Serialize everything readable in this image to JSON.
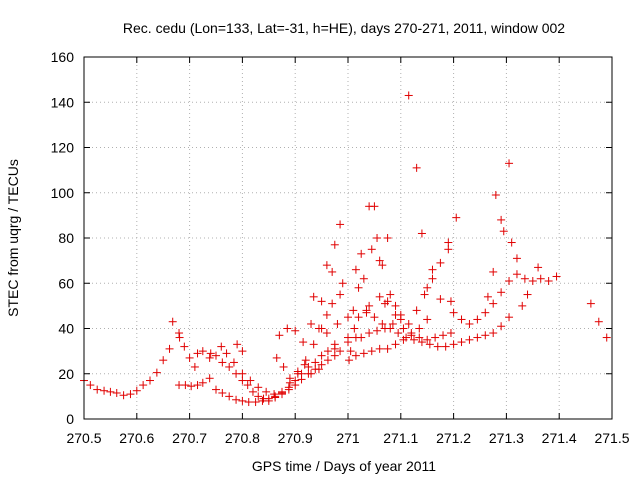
{
  "chart_data": {
    "type": "scatter",
    "title": "Rec. cedu (Lon=133, Lat=-31, h=HE), days 270-271, 2011, window 002",
    "xlabel": "GPS time / Days of year 2011",
    "ylabel": "STEC from uqrg / TECUs",
    "xlim": [
      270.5,
      271.5
    ],
    "ylim": [
      0,
      160
    ],
    "x_ticks": [
      "270.5",
      "270.6",
      "270.7",
      "270.8",
      "270.9",
      "271",
      "271.1",
      "271.2",
      "271.3",
      "271.4",
      "271.5"
    ],
    "y_ticks": [
      "0",
      "20",
      "40",
      "60",
      "80",
      "100",
      "120",
      "140",
      "160"
    ],
    "grid": true,
    "marker": "+",
    "marker_color": "#e00000",
    "points": [
      [
        270.5,
        17
      ],
      [
        270.512,
        15
      ],
      [
        270.525,
        13
      ],
      [
        270.538,
        12.5
      ],
      [
        270.55,
        12
      ],
      [
        270.562,
        11.5
      ],
      [
        270.575,
        10.5
      ],
      [
        270.588,
        11
      ],
      [
        270.6,
        12.5
      ],
      [
        270.612,
        15
      ],
      [
        270.625,
        17
      ],
      [
        270.638,
        20.5
      ],
      [
        270.65,
        26
      ],
      [
        270.662,
        31
      ],
      [
        270.668,
        43
      ],
      [
        270.68,
        38
      ],
      [
        270.681,
        36
      ],
      [
        270.69,
        32
      ],
      [
        270.68,
        15
      ],
      [
        270.692,
        15
      ],
      [
        270.703,
        14.5
      ],
      [
        270.715,
        15
      ],
      [
        270.725,
        16
      ],
      [
        270.738,
        18
      ],
      [
        270.75,
        13
      ],
      [
        270.762,
        11.5
      ],
      [
        270.775,
        10
      ],
      [
        270.788,
        8.5
      ],
      [
        270.8,
        8
      ],
      [
        270.812,
        7.5
      ],
      [
        270.825,
        7.5
      ],
      [
        270.838,
        8
      ],
      [
        270.85,
        9
      ],
      [
        270.862,
        10
      ],
      [
        270.875,
        11.5
      ],
      [
        270.888,
        13
      ],
      [
        270.9,
        15
      ],
      [
        270.912,
        17.5
      ],
      [
        270.925,
        20
      ],
      [
        270.938,
        22
      ],
      [
        270.95,
        24
      ],
      [
        270.962,
        26
      ],
      [
        270.975,
        28
      ],
      [
        270.7,
        27
      ],
      [
        270.71,
        23
      ],
      [
        270.715,
        29
      ],
      [
        270.725,
        30
      ],
      [
        270.738,
        27
      ],
      [
        270.75,
        28
      ],
      [
        270.762,
        25
      ],
      [
        270.775,
        23
      ],
      [
        270.788,
        20
      ],
      [
        270.8,
        17
      ],
      [
        270.81,
        15
      ],
      [
        270.82,
        12
      ],
      [
        270.83,
        10
      ],
      [
        270.84,
        9
      ],
      [
        270.85,
        8
      ],
      [
        270.862,
        9.5
      ],
      [
        270.875,
        11
      ],
      [
        270.888,
        14
      ],
      [
        270.9,
        17
      ],
      [
        270.912,
        20
      ],
      [
        270.925,
        23
      ],
      [
        270.938,
        25
      ],
      [
        270.95,
        28
      ],
      [
        270.962,
        30
      ],
      [
        270.975,
        31
      ],
      [
        270.74,
        29
      ],
      [
        270.76,
        32
      ],
      [
        270.77,
        29
      ],
      [
        270.784,
        25
      ],
      [
        270.8,
        20
      ],
      [
        270.815,
        17
      ],
      [
        270.83,
        14
      ],
      [
        270.845,
        12
      ],
      [
        270.86,
        11
      ],
      [
        270.875,
        12
      ],
      [
        270.89,
        16
      ],
      [
        270.905,
        20
      ],
      [
        270.92,
        26
      ],
      [
        270.935,
        33
      ],
      [
        270.95,
        40
      ],
      [
        270.96,
        46
      ],
      [
        270.97,
        51
      ],
      [
        270.985,
        55
      ],
      [
        270.79,
        33
      ],
      [
        270.8,
        30
      ],
      [
        270.87,
        37
      ],
      [
        270.885,
        40
      ],
      [
        270.9,
        39
      ],
      [
        270.915,
        34
      ],
      [
        270.93,
        42
      ],
      [
        270.945,
        40
      ],
      [
        270.96,
        38
      ],
      [
        270.975,
        33
      ],
      [
        270.985,
        30
      ],
      [
        270.865,
        27
      ],
      [
        270.878,
        23
      ],
      [
        270.89,
        18
      ],
      [
        270.905,
        21
      ],
      [
        270.918,
        24
      ],
      [
        270.93,
        20
      ],
      [
        270.945,
        22
      ],
      [
        270.935,
        54
      ],
      [
        270.95,
        52
      ],
      [
        270.96,
        68
      ],
      [
        270.97,
        65
      ],
      [
        270.975,
        77
      ],
      [
        270.985,
        86
      ],
      [
        270.99,
        60
      ],
      [
        270.98,
        42
      ],
      [
        271.0,
        36
      ],
      [
        271.005,
        30
      ],
      [
        271.012,
        40
      ],
      [
        271.015,
        66
      ],
      [
        271.02,
        58
      ],
      [
        271.025,
        73
      ],
      [
        271.03,
        62
      ],
      [
        271.035,
        47
      ],
      [
        271.04,
        94
      ],
      [
        271.045,
        75
      ],
      [
        271.05,
        94
      ],
      [
        271.055,
        80
      ],
      [
        271.06,
        70
      ],
      [
        271.065,
        68
      ],
      [
        271.07,
        51
      ],
      [
        271.075,
        80
      ],
      [
        271.08,
        55
      ],
      [
        271.09,
        50
      ],
      [
        271.002,
        26
      ],
      [
        271.015,
        28
      ],
      [
        271.03,
        29
      ],
      [
        271.045,
        30
      ],
      [
        271.06,
        31
      ],
      [
        271.075,
        31
      ],
      [
        271.09,
        33
      ],
      [
        271.105,
        35
      ],
      [
        271.12,
        37
      ],
      [
        271.135,
        40
      ],
      [
        271.15,
        44
      ],
      [
        271.0,
        34
      ],
      [
        271.015,
        36
      ],
      [
        271.025,
        36
      ],
      [
        271.04,
        38
      ],
      [
        271.055,
        39
      ],
      [
        271.07,
        40
      ],
      [
        271.085,
        42
      ],
      [
        271.1,
        44
      ],
      [
        271.0,
        45
      ],
      [
        271.01,
        48
      ],
      [
        271.02,
        45
      ],
      [
        271.035,
        48
      ],
      [
        271.05,
        45
      ],
      [
        271.065,
        42
      ],
      [
        271.08,
        40
      ],
      [
        271.095,
        38
      ],
      [
        271.11,
        36
      ],
      [
        271.125,
        35
      ],
      [
        271.14,
        34
      ],
      [
        271.155,
        33
      ],
      [
        271.17,
        32
      ],
      [
        271.185,
        32
      ],
      [
        271.2,
        33
      ],
      [
        271.215,
        34
      ],
      [
        271.23,
        35
      ],
      [
        271.245,
        36
      ],
      [
        271.26,
        37
      ],
      [
        271.275,
        38
      ],
      [
        271.29,
        41
      ],
      [
        271.305,
        45
      ],
      [
        271.04,
        50
      ],
      [
        271.06,
        54
      ],
      [
        271.075,
        52
      ],
      [
        271.09,
        46
      ],
      [
        271.105,
        40
      ],
      [
        271.12,
        38
      ],
      [
        271.135,
        36
      ],
      [
        271.15,
        35
      ],
      [
        271.165,
        36
      ],
      [
        271.18,
        37
      ],
      [
        271.195,
        38
      ],
      [
        271.1,
        46
      ],
      [
        271.115,
        42
      ],
      [
        271.13,
        48
      ],
      [
        271.145,
        55
      ],
      [
        271.16,
        62
      ],
      [
        271.175,
        69
      ],
      [
        271.19,
        75
      ],
      [
        271.205,
        89
      ],
      [
        271.115,
        143
      ],
      [
        271.13,
        111
      ],
      [
        271.14,
        82
      ],
      [
        271.15,
        58
      ],
      [
        271.16,
        66
      ],
      [
        271.175,
        53
      ],
      [
        271.19,
        78
      ],
      [
        271.195,
        52
      ],
      [
        271.2,
        47
      ],
      [
        271.215,
        44
      ],
      [
        271.23,
        42
      ],
      [
        271.245,
        44
      ],
      [
        271.26,
        47
      ],
      [
        271.275,
        51
      ],
      [
        271.29,
        56
      ],
      [
        271.305,
        61
      ],
      [
        271.32,
        64
      ],
      [
        271.335,
        62
      ],
      [
        271.265,
        54
      ],
      [
        271.275,
        65
      ],
      [
        271.28,
        99
      ],
      [
        271.29,
        88
      ],
      [
        271.295,
        83
      ],
      [
        271.305,
        113
      ],
      [
        271.31,
        78
      ],
      [
        271.32,
        71
      ],
      [
        271.33,
        50
      ],
      [
        271.34,
        55
      ],
      [
        271.36,
        67
      ],
      [
        271.35,
        61
      ],
      [
        271.365,
        62
      ],
      [
        271.38,
        61
      ],
      [
        271.395,
        63
      ],
      [
        271.46,
        51
      ],
      [
        271.475,
        43
      ],
      [
        271.49,
        36
      ]
    ]
  }
}
